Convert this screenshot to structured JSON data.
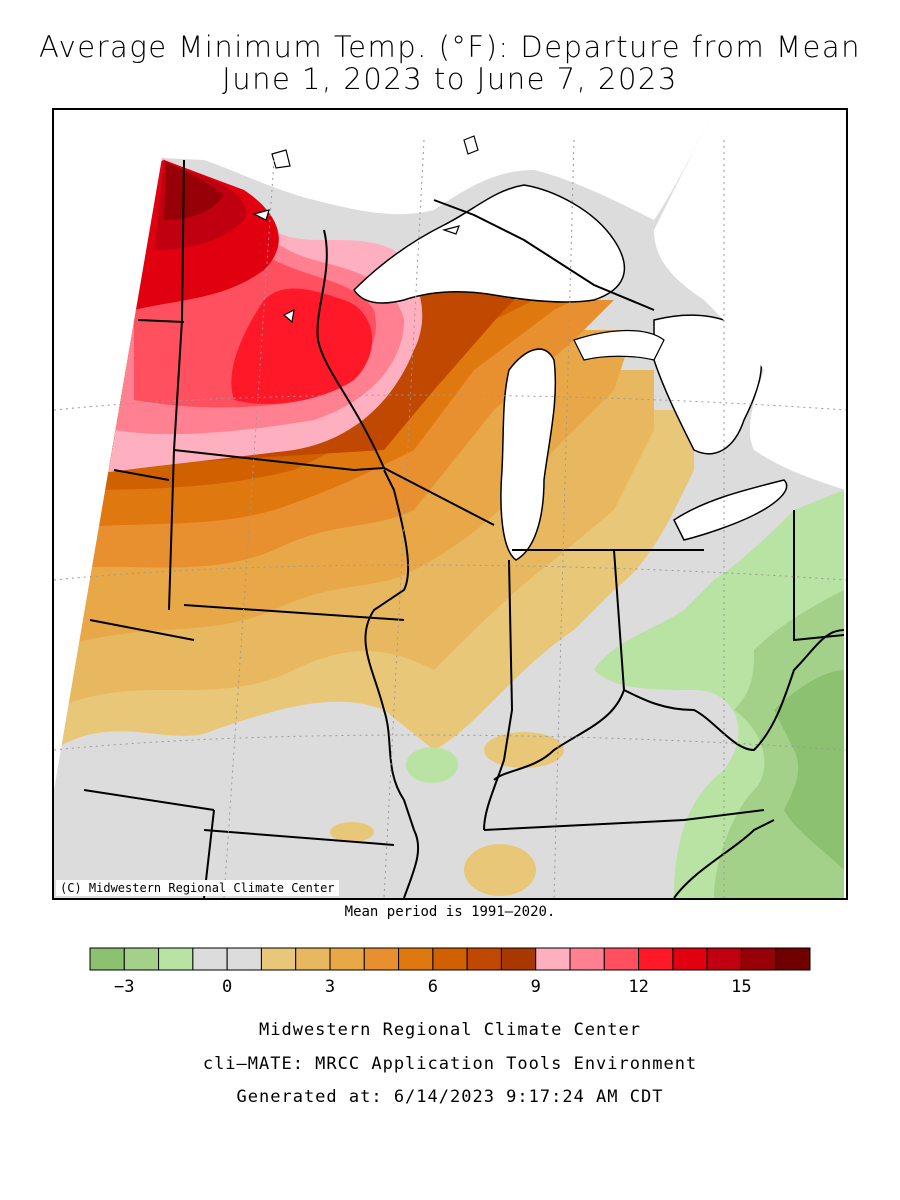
{
  "title_line1": "Average Minimum Temp. (°F): Departure from Mean",
  "title_line2": "June 1, 2023 to June 7, 2023",
  "copyright": "(C) Midwestern Regional Climate Center",
  "mean_period": "Mean period is 1991–2020.",
  "legend": {
    "colors": [
      "#8cc170",
      "#a3d18a",
      "#b8e3a2",
      "#dcdcdc",
      "#dcdcdc",
      "#e8c878",
      "#e8b860",
      "#e8a848",
      "#e89030",
      "#e07810",
      "#d06000",
      "#c04800",
      "#a83800",
      "#ffb0c0",
      "#ff8090",
      "#ff5060",
      "#ff1828",
      "#e00010",
      "#c00010",
      "#980008",
      "#700000"
    ],
    "tick_labels": [
      "−3",
      "0",
      "3",
      "6",
      "9",
      "12",
      "15"
    ],
    "tick_values": [
      -3,
      0,
      3,
      6,
      9,
      12,
      15
    ]
  },
  "footer": {
    "line1": "Midwestern Regional Climate Center",
    "line2": "cli–MATE: MRCC Application Tools Environment",
    "line3": "Generated at: 6/14/2023 9:17:24 AM CDT"
  }
}
